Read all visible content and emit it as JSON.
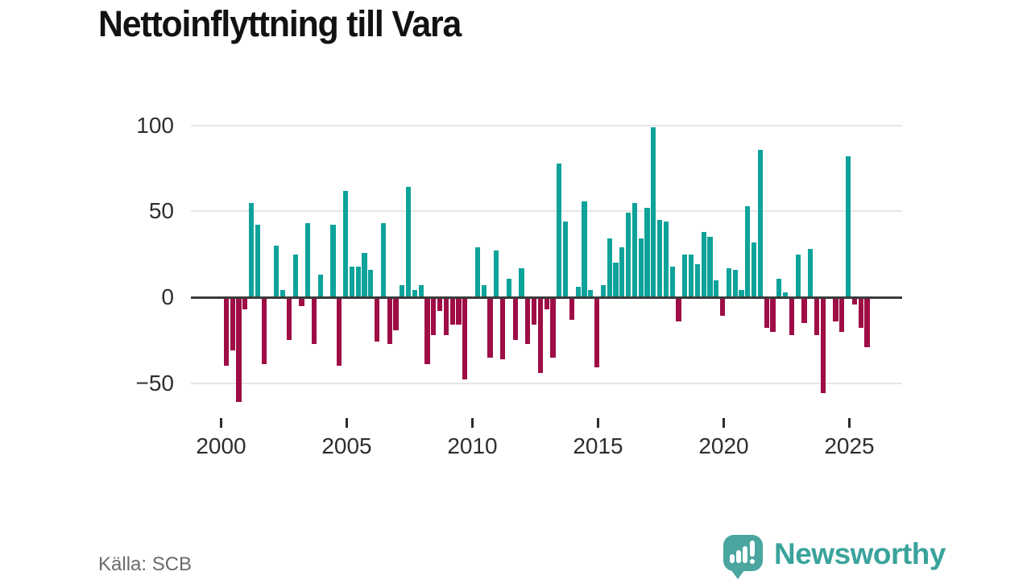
{
  "title": "Nettoinflyttning till Vara",
  "source": "Källa: SCB",
  "branding": {
    "name": "Newsworthy",
    "icon": "bar-chart-speech-bubble-icon",
    "icon_color": "#4aa69f",
    "wordmark_color": "#3aa39c"
  },
  "chart_data": {
    "type": "bar",
    "title": "Nettoinflyttning till Vara",
    "frequency": "quarterly",
    "start_year": 2000,
    "end_year": 2025,
    "grid": true,
    "legend": false,
    "ylim": [
      -77,
      105
    ],
    "positive_color": "#0ea39a",
    "negative_color": "#9e0d45",
    "y_ticks": [
      {
        "value": 100,
        "label": "100"
      },
      {
        "value": 50,
        "label": "50"
      },
      {
        "value": 0,
        "label": "0"
      },
      {
        "value": -50,
        "label": "−50"
      }
    ],
    "x_ticks": [
      {
        "year": 2000,
        "label": "2000"
      },
      {
        "year": 2005,
        "label": "2005"
      },
      {
        "year": 2010,
        "label": "2010"
      },
      {
        "year": 2015,
        "label": "2015"
      },
      {
        "year": 2020,
        "label": "2020"
      },
      {
        "year": 2025,
        "label": "2025"
      }
    ],
    "values": [
      0,
      -40,
      -31,
      -61,
      -7,
      55,
      42,
      -39,
      0,
      30,
      4,
      -25,
      25,
      -5,
      43,
      -27,
      13,
      0,
      42,
      -40,
      62,
      18,
      18,
      26,
      16,
      -26,
      43,
      -27,
      -19,
      7,
      64,
      4,
      7,
      -39,
      -22,
      -8,
      -22,
      -16,
      -16,
      -48,
      0,
      29,
      7,
      -35,
      27,
      -36,
      11,
      -25,
      17,
      -27,
      -16,
      -44,
      -7,
      -35,
      78,
      44,
      -13,
      6,
      56,
      4,
      -41,
      7,
      34,
      20,
      29,
      49,
      55,
      34,
      52,
      99,
      45,
      44,
      18,
      -14,
      25,
      25,
      19,
      38,
      35,
      10,
      -11,
      17,
      16,
      4,
      53,
      32,
      86,
      -18,
      -20,
      11,
      3,
      -22,
      25,
      -15,
      28,
      -22,
      -56,
      0,
      -14,
      -20,
      82,
      -4,
      -18,
      -29
    ]
  }
}
